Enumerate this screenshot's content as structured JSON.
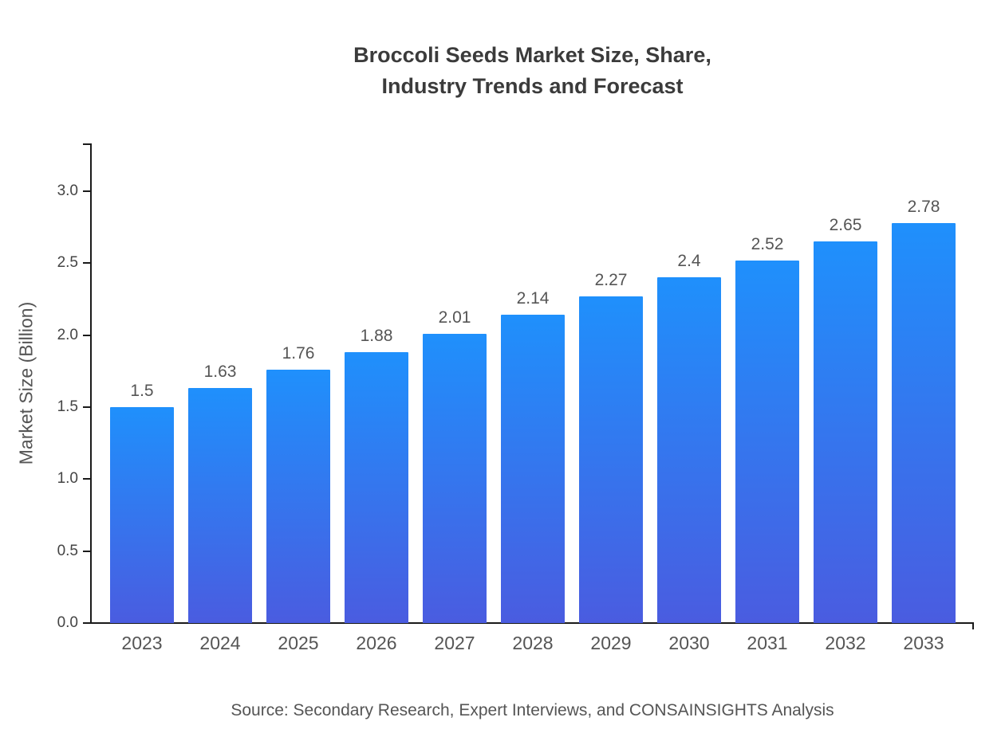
{
  "title": "Broccoli Seeds Market Size, Share,\nIndustry Trends and Forecast",
  "source": "Source: Secondary Research, Expert Interviews, and CONSAINSIGHTS Analysis",
  "chart_data": {
    "type": "bar",
    "title": "Broccoli Seeds Market Size, Share, Industry Trends and Forecast",
    "categories": [
      "2023",
      "2024",
      "2025",
      "2026",
      "2027",
      "2028",
      "2029",
      "2030",
      "2031",
      "2032",
      "2033"
    ],
    "values": [
      1.5,
      1.63,
      1.76,
      1.88,
      2.01,
      2.14,
      2.27,
      2.4,
      2.52,
      2.65,
      2.78
    ],
    "xlabel": "",
    "ylabel": "Market Size (Billion)",
    "ylim": [
      0,
      3.35
    ],
    "yticks": [
      0.0,
      0.5,
      1.0,
      1.5,
      2.0,
      2.5,
      3.0
    ],
    "grid": false,
    "legend": false,
    "bar_gradient_top": "#1f90fc",
    "bar_gradient_bottom": "#4a5ce0",
    "value_label_color": "#555555",
    "axis_color": "#1a1a1a"
  }
}
